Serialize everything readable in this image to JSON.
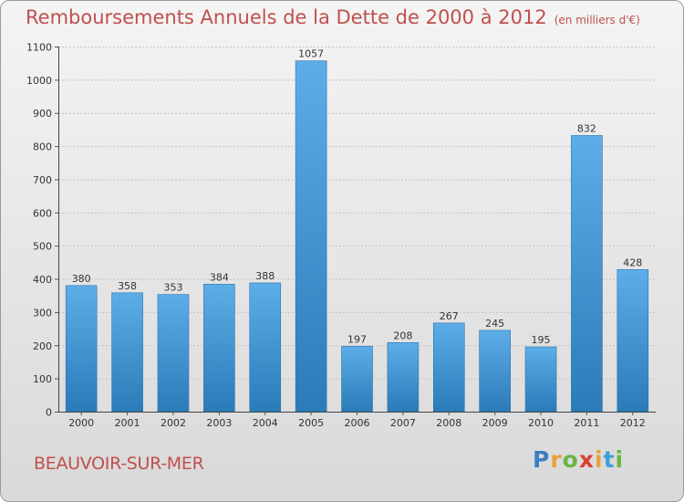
{
  "title": "Remboursements Annuels de la Dette de 2000 à 2012",
  "subtitle": "(en milliers d'€)",
  "commune": "BEAUVOIR-SUR-MER",
  "brand": {
    "letters": [
      "P",
      "r",
      "o",
      "x",
      "i",
      "t",
      "i"
    ],
    "colors": [
      "#3a7fc1",
      "#e8a23a",
      "#6bb544",
      "#d9432f",
      "#e8a23a",
      "#3aa0d9",
      "#6bb544"
    ]
  },
  "colors": {
    "accent": "#c0504d",
    "bar_light": "#5dade8",
    "bar_dark": "#2a7bb8"
  },
  "chart_data": {
    "type": "bar",
    "categories": [
      "2000",
      "2001",
      "2002",
      "2003",
      "2004",
      "2005",
      "2006",
      "2007",
      "2008",
      "2009",
      "2010",
      "2011",
      "2012"
    ],
    "values": [
      380,
      358,
      353,
      384,
      388,
      1057,
      197,
      208,
      267,
      245,
      195,
      832,
      428
    ],
    "ylim": [
      0,
      1100
    ],
    "yticks": [
      0,
      100,
      200,
      300,
      400,
      500,
      600,
      700,
      800,
      900,
      1000,
      1100
    ],
    "grid": true,
    "xlabel": "",
    "ylabel": ""
  }
}
